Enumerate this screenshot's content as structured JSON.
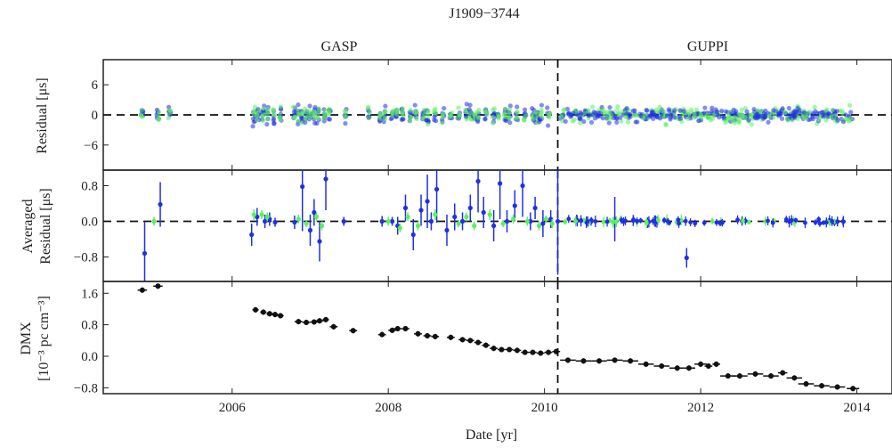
{
  "chart_data": {
    "type": "scatter",
    "title": "J1909−3744",
    "segments": [
      "GASP",
      "GUPPI"
    ],
    "divider_x": 2010.17,
    "xlabel": "Date [yr]",
    "xlim": [
      2004.35,
      2014.45
    ],
    "xticks": [
      2006,
      2008,
      2010,
      2012,
      2014
    ],
    "colors": {
      "low_freq": "#5bf05b",
      "high_freq": "#1f2fe6",
      "dmx": "#111111"
    },
    "panels": [
      {
        "id": "residual",
        "ylabel": "Residual [μs]",
        "ylim": [
          -11,
          11
        ],
        "yticks": [
          6,
          0,
          -6
        ],
        "ytick_labels": [
          "6",
          "0",
          "−6"
        ],
        "zero_line": true,
        "observing_epochs": [
          2004.85,
          2005.05,
          2005.2,
          2006.28,
          2006.33,
          2006.4,
          2006.45,
          2006.53,
          2006.62,
          2006.8,
          2006.85,
          2006.9,
          2006.95,
          2007.0,
          2007.05,
          2007.1,
          2007.18,
          2007.25,
          2007.45,
          2007.75,
          2007.9,
          2007.95,
          2008.05,
          2008.1,
          2008.18,
          2008.28,
          2008.35,
          2008.45,
          2008.5,
          2008.6,
          2008.7,
          2008.8,
          2008.9,
          2009.0,
          2009.05,
          2009.1,
          2009.15,
          2009.25,
          2009.35,
          2009.4,
          2009.5,
          2009.55,
          2009.65,
          2009.75,
          2009.85,
          2009.9,
          2009.95,
          2010.05
        ],
        "guppi_dense_range": [
          2010.2,
          2013.95
        ]
      },
      {
        "id": "averaged",
        "ylabel": "Averaged Residual [μs]",
        "ylim": [
          -1.35,
          1.15
        ],
        "yticks": [
          0.8,
          0.0,
          -0.8
        ],
        "ytick_labels": [
          "0.8",
          "0.0",
          "−0.8"
        ],
        "zero_line": true,
        "series": [
          {
            "name": "high",
            "x": [
              2004.88,
              2005.08,
              2006.25,
              2006.32,
              2006.42,
              2006.48,
              2006.55,
              2006.8,
              2006.9,
              2007.0,
              2007.05,
              2007.12,
              2007.2,
              2007.43,
              2007.92,
              2008.05,
              2008.12,
              2008.22,
              2008.32,
              2008.42,
              2008.5,
              2008.55,
              2008.62,
              2008.75,
              2008.85,
              2008.95,
              2009.05,
              2009.15,
              2009.22,
              2009.35,
              2009.43,
              2009.52,
              2009.62,
              2009.72,
              2009.82,
              2009.88,
              2009.98,
              2010.08,
              2010.17,
              2010.9,
              2011.82
            ],
            "y": [
              -0.72,
              0.38,
              -0.3,
              0.1,
              0.0,
              0.05,
              -0.02,
              -0.02,
              0.78,
              -0.2,
              0.2,
              -0.45,
              0.95,
              0.0,
              0.0,
              0.0,
              -0.1,
              0.3,
              -0.3,
              0.25,
              0.45,
              0.0,
              0.72,
              -0.2,
              0.1,
              0.0,
              0.3,
              0.9,
              0.2,
              -0.1,
              0.85,
              0.0,
              0.35,
              0.8,
              0.0,
              0.3,
              -0.05,
              0.05,
              0.0,
              0.05,
              -0.82
            ],
            "yerr": [
              0.7,
              0.5,
              0.25,
              0.2,
              0.15,
              0.15,
              0.1,
              0.15,
              1.0,
              0.35,
              0.3,
              0.45,
              0.7,
              0.1,
              0.12,
              0.1,
              0.2,
              0.3,
              0.35,
              0.35,
              0.6,
              0.2,
              0.75,
              0.35,
              0.3,
              0.2,
              0.3,
              0.7,
              0.35,
              0.35,
              0.8,
              0.25,
              0.35,
              0.7,
              0.2,
              0.25,
              0.3,
              0.2,
              1.2,
              0.5,
              0.22
            ]
          },
          {
            "name": "low",
            "x": [
              2005.0,
              2006.28,
              2006.38,
              2006.45,
              2006.85,
              2006.95,
              2007.08,
              2007.15,
              2008.0,
              2008.15,
              2008.25,
              2008.38,
              2008.6,
              2008.9,
              2009.0,
              2009.1,
              2009.3,
              2009.47,
              2009.6,
              2009.78,
              2009.93,
              2010.02,
              2010.1
            ],
            "y": [
              0.0,
              0.15,
              0.15,
              0.1,
              0.05,
              -0.05,
              0.1,
              -0.1,
              0.0,
              -0.15,
              0.1,
              -0.1,
              0.15,
              -0.05,
              0.1,
              -0.1,
              0.15,
              -0.05,
              0.05,
              0.0,
              -0.1,
              0.05,
              -0.05
            ],
            "yerr": [
              0.1,
              0.12,
              0.1,
              0.1,
              0.1,
              0.08,
              0.1,
              0.1,
              0.1,
              0.1,
              0.1,
              0.1,
              0.12,
              0.08,
              0.1,
              0.1,
              0.12,
              0.08,
              0.1,
              0.1,
              0.1,
              0.08,
              0.1
            ]
          }
        ]
      },
      {
        "id": "dmx",
        "ylabel": "DMX [10⁻³ pc cm⁻³]",
        "ylim": [
          -0.95,
          1.9
        ],
        "yticks": [
          1.6,
          0.8,
          0.0,
          -0.8
        ],
        "ytick_labels": [
          "1.6",
          "0.8",
          "0.0",
          "−0.8"
        ],
        "points": {
          "x": [
            2004.85,
            2005.05,
            2006.3,
            2006.4,
            2006.48,
            2006.55,
            2006.62,
            2006.85,
            2006.95,
            2007.05,
            2007.12,
            2007.2,
            2007.3,
            2007.55,
            2007.92,
            2008.05,
            2008.12,
            2008.22,
            2008.38,
            2008.5,
            2008.6,
            2008.8,
            2008.95,
            2009.05,
            2009.15,
            2009.25,
            2009.35,
            2009.45,
            2009.55,
            2009.65,
            2009.75,
            2009.85,
            2009.95,
            2010.05,
            2010.15,
            2010.3,
            2010.5,
            2010.7,
            2010.9,
            2011.1,
            2011.3,
            2011.5,
            2011.7,
            2011.85,
            2012.0,
            2012.1,
            2012.2,
            2012.35,
            2012.5,
            2012.7,
            2012.9,
            2013.05,
            2013.2,
            2013.35,
            2013.55,
            2013.75,
            2013.95
          ],
          "y": [
            1.68,
            1.78,
            1.18,
            1.12,
            1.08,
            1.06,
            1.03,
            0.88,
            0.86,
            0.87,
            0.9,
            0.93,
            0.75,
            0.65,
            0.55,
            0.66,
            0.7,
            0.7,
            0.57,
            0.52,
            0.5,
            0.48,
            0.42,
            0.4,
            0.35,
            0.28,
            0.2,
            0.17,
            0.17,
            0.15,
            0.1,
            0.1,
            0.08,
            0.1,
            0.12,
            -0.1,
            -0.12,
            -0.12,
            -0.1,
            -0.12,
            -0.2,
            -0.25,
            -0.3,
            -0.3,
            -0.2,
            -0.25,
            -0.2,
            -0.5,
            -0.5,
            -0.45,
            -0.5,
            -0.42,
            -0.55,
            -0.7,
            -0.75,
            -0.78,
            -0.82
          ],
          "xerr": [
            0.06,
            0.06,
            0.04,
            0.04,
            0.04,
            0.04,
            0.04,
            0.05,
            0.05,
            0.05,
            0.05,
            0.04,
            0.05,
            0.05,
            0.05,
            0.05,
            0.05,
            0.05,
            0.05,
            0.05,
            0.05,
            0.05,
            0.05,
            0.05,
            0.05,
            0.05,
            0.05,
            0.05,
            0.05,
            0.05,
            0.05,
            0.05,
            0.05,
            0.05,
            0.05,
            0.1,
            0.1,
            0.1,
            0.1,
            0.1,
            0.1,
            0.1,
            0.1,
            0.08,
            0.08,
            0.05,
            0.05,
            0.1,
            0.1,
            0.1,
            0.1,
            0.06,
            0.1,
            0.1,
            0.1,
            0.1,
            0.08
          ]
        }
      }
    ]
  }
}
